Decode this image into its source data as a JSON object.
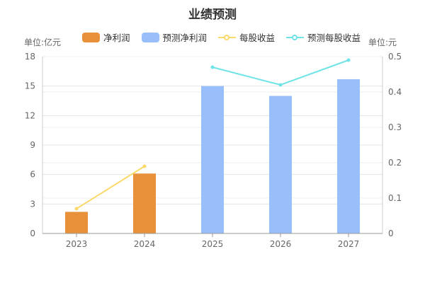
{
  "chart_data": {
    "type": "bar+line",
    "title": "业绩预测",
    "categories": [
      "2023",
      "2024",
      "2025",
      "2026",
      "2027"
    ],
    "left_axis": {
      "unit_label": "单位:亿元",
      "min": 0,
      "max": 18,
      "ticks": [
        "0",
        "3",
        "6",
        "9",
        "12",
        "15",
        "18"
      ]
    },
    "right_axis": {
      "unit_label": "单位:元",
      "min": 0,
      "max": 0.5,
      "ticks": [
        "0",
        "0.1",
        "0.2",
        "0.3",
        "0.4",
        "0.5"
      ]
    },
    "series": [
      {
        "name": "净利润",
        "type": "bar",
        "axis": "left",
        "color": "#E8913A",
        "values": [
          2.2,
          6.1,
          null,
          null,
          null
        ]
      },
      {
        "name": "预测净利润",
        "type": "bar",
        "axis": "left",
        "color": "#99BFFB",
        "values": [
          null,
          null,
          15.0,
          14.0,
          15.7
        ]
      },
      {
        "name": "每股收益",
        "type": "line",
        "axis": "right",
        "color": "#FAD869",
        "values": [
          0.07,
          0.19,
          null,
          null,
          null
        ]
      },
      {
        "name": "预测每股收益",
        "type": "line",
        "axis": "right",
        "color": "#6FE3E6",
        "values": [
          null,
          null,
          0.47,
          0.42,
          0.49
        ]
      }
    ],
    "grid": true,
    "legend_position": "top"
  }
}
